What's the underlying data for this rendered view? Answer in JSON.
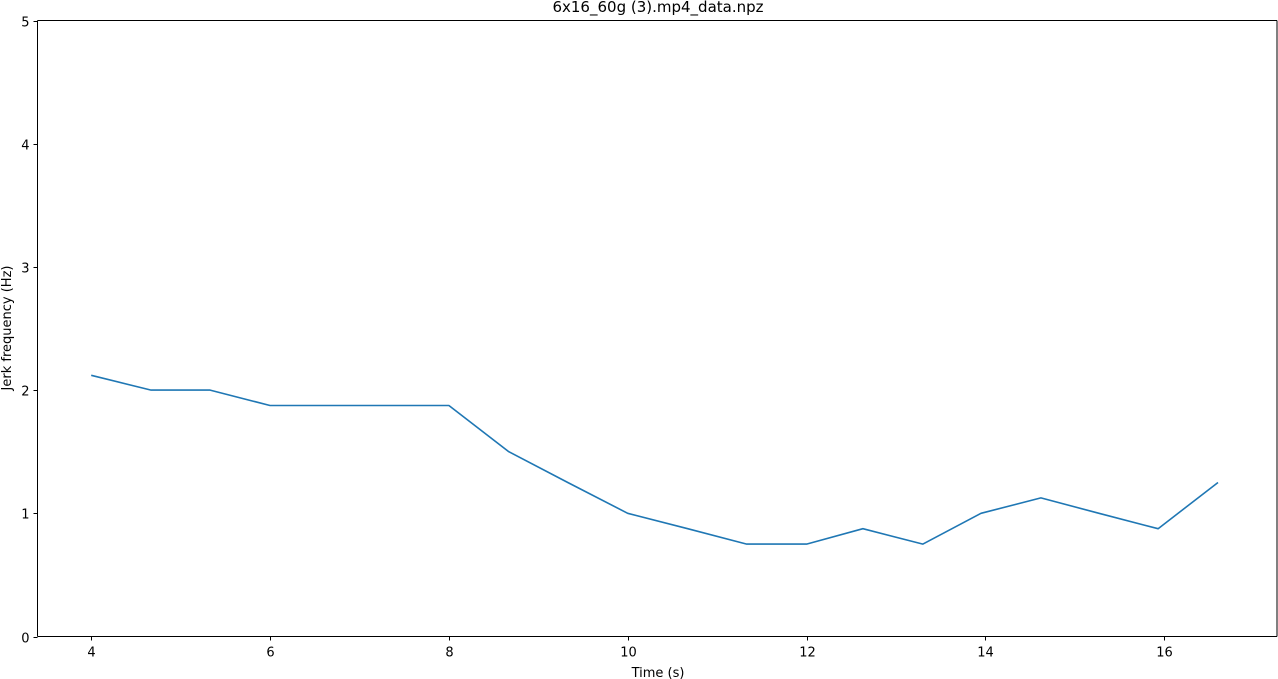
{
  "chart_data": {
    "type": "line",
    "title": "6x16_60g (3).mp4_data.npz",
    "xlabel": "Time (s)",
    "ylabel": "Jerk frequency (Hz)",
    "xlim": [
      3.4,
      17.26
    ],
    "ylim": [
      0,
      5
    ],
    "xticks": [
      4,
      6,
      8,
      10,
      12,
      14,
      16
    ],
    "yticks": [
      0,
      1,
      2,
      3,
      4,
      5
    ],
    "grid": false,
    "series": [
      {
        "color": "#1f77b4",
        "x": [
          4.0,
          4.67,
          5.33,
          6.0,
          6.67,
          7.33,
          8.0,
          8.67,
          9.33,
          10.0,
          10.67,
          11.33,
          12.0,
          12.63,
          13.3,
          13.95,
          14.62,
          15.27,
          15.93,
          16.6
        ],
        "y": [
          2.12,
          2.0,
          2.0,
          1.875,
          1.875,
          1.875,
          1.875,
          1.5,
          1.25,
          1.0,
          0.875,
          0.75,
          0.75,
          0.875,
          0.75,
          1.0,
          1.125,
          1.0,
          0.875,
          1.25
        ]
      }
    ]
  }
}
